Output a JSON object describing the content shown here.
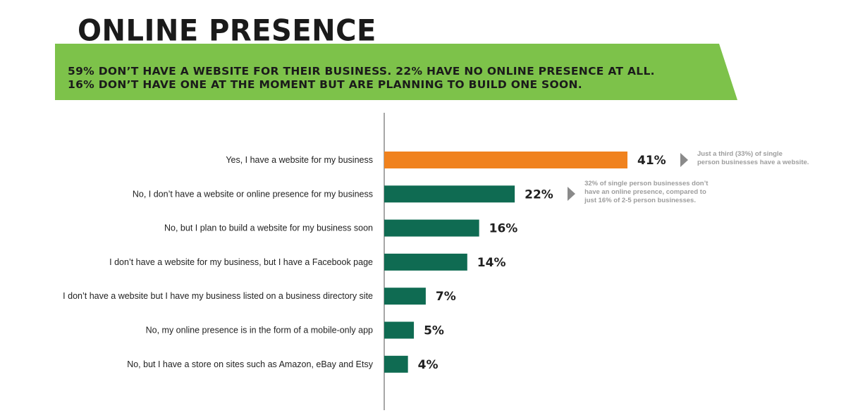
{
  "title": "ONLINE PRESENCE",
  "banner": {
    "line1": "59% DON’T HAVE A WEBSITE FOR THEIR BUSINESS. 22% HAVE NO ONLINE PRESENCE AT ALL.",
    "line2": "16% DON’T HAVE ONE AT THE MOMENT BUT ARE PLANNING TO BUILD ONE SOON."
  },
  "colors": {
    "banner_green": "#7dc24a",
    "highlight_orange": "#f0821e",
    "bar_green": "#0f6b52",
    "note_gray": "#9d9d9d"
  },
  "chart_data": {
    "type": "bar",
    "orientation": "horizontal",
    "categories": [
      "Yes, I have a website for my business",
      "No, I don’t have a website or online presence for my business",
      "No, but I plan to build a website for my business soon",
      "I don’t have a website for my business, but I have a Facebook page",
      "I don’t have a website but I have my business listed on a business directory site",
      "No, my online presence is in the form of a mobile-only app",
      "No, but I have a store on sites such as Amazon, eBay and Etsy"
    ],
    "values": [
      41,
      22,
      16,
      14,
      7,
      5,
      4
    ],
    "value_labels": [
      "41%",
      "22%",
      "16%",
      "14%",
      "7%",
      "5%",
      "4%"
    ],
    "highlight_index": 0,
    "xlim": [
      0,
      45
    ],
    "grid": false,
    "annotations": [
      {
        "category_index": 0,
        "lines": [
          "Just a third (33%) of single",
          "person businesses have a website."
        ]
      },
      {
        "category_index": 1,
        "lines": [
          "32% of single person businesses don’t",
          "have an online presence, compared to",
          "just 16% of 2-5 person businesses."
        ]
      }
    ]
  }
}
